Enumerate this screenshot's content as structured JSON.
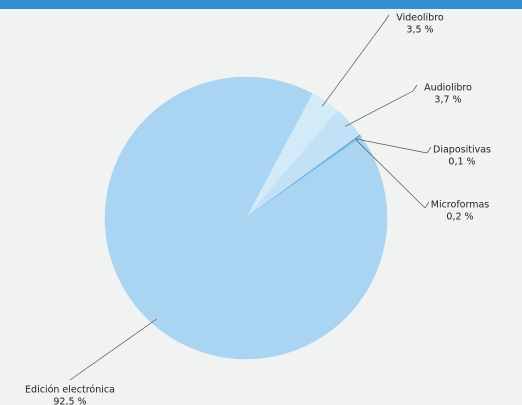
{
  "chart_data": {
    "type": "pie",
    "categories": [
      "Videolibro",
      "Audiolibro",
      "Diapositivas",
      "Microformas",
      "Edición electrónica"
    ],
    "values": [
      3.5,
      3.7,
      0.1,
      0.2,
      92.5
    ],
    "value_labels": [
      "3,5 %",
      "3,7 %",
      "0,1 %",
      "0,2 %",
      "92,5 %"
    ],
    "colors": [
      "#d3eaf8",
      "#c2e1f6",
      "#3d97d3",
      "#86c3ea",
      "#a9d4f2"
    ]
  }
}
